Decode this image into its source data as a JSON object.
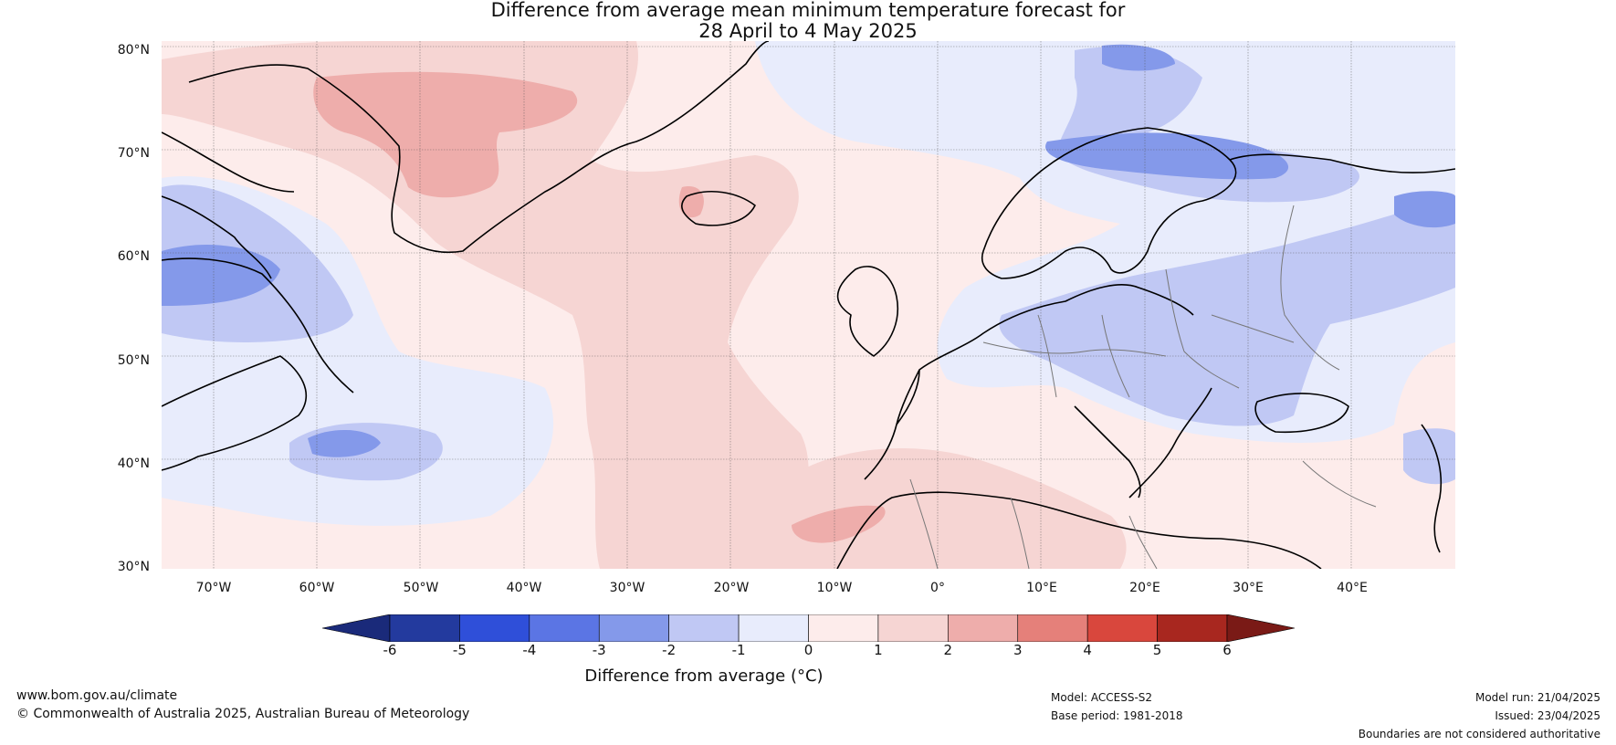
{
  "title": {
    "line1": "Difference from average mean minimum temperature forecast for",
    "line2": "28 April to 4 May 2025"
  },
  "lat_ticks": [
    "80°N",
    "70°N",
    "60°N",
    "50°N",
    "40°N",
    "30°N"
  ],
  "lon_ticks": [
    "70°W",
    "60°W",
    "50°W",
    "40°W",
    "30°W",
    "20°W",
    "10°W",
    "0°",
    "10°E",
    "20°E",
    "30°E",
    "40°E"
  ],
  "colorbar": {
    "ticks": [
      "-6",
      "-5",
      "-4",
      "-3",
      "-2",
      "-1",
      "0",
      "1",
      "2",
      "3",
      "4",
      "5",
      "6"
    ],
    "colors": [
      "#233a9e",
      "#2f4fd9",
      "#5b75e4",
      "#8499ea",
      "#c0c8f4",
      "#e8ecfc",
      "#fdeceb",
      "#f6d5d3",
      "#eeadab",
      "#e5807a",
      "#d9473d",
      "#a8271f"
    ],
    "under_color": "#1a2a7a",
    "over_color": "#7a1a16",
    "label": "Difference from average (°C)"
  },
  "footer": {
    "url": "www.bom.gov.au/climate",
    "copyright": "© Commonwealth of Australia 2025, Australian Bureau of Meteorology",
    "model": "Model: ACCESS-S2",
    "base_period": "Base period: 1981-2018",
    "model_run": "Model run: 21/04/2025",
    "issued": "Issued: 23/04/2025",
    "disclaimer": "Boundaries are not considered authoritative"
  }
}
